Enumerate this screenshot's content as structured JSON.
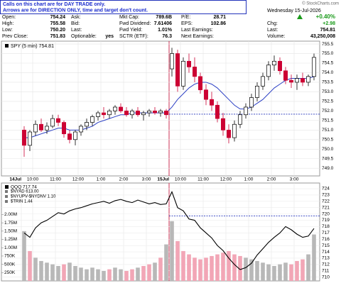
{
  "header": {
    "copyright": "© StockCharts.com",
    "note_lines": [
      "Calls on this chart are for DAY TRADE only.",
      "Arrows are for DIRECTION ONLY, time and target don't count."
    ],
    "quote": [
      [
        [
          "Open:",
          "754.24"
        ],
        [
          "High:",
          "755.58"
        ],
        [
          "Low:",
          "750.20"
        ],
        [
          "Prev Close:",
          "751.83"
        ]
      ],
      [
        [
          "Ask:"
        ],
        [
          "Bid:"
        ],
        [
          "Last:"
        ],
        [
          "Optionable:",
          "yes"
        ]
      ],
      [
        [
          "Mkt Cap:",
          "789.6B"
        ],
        [
          "Fwd Dividend:",
          "7.61406"
        ],
        [
          "Fwd Yield:",
          "1.01%"
        ],
        [
          "SCTR (ETF):",
          "76.3"
        ]
      ],
      [
        [
          "P/E:",
          "28.71"
        ],
        [
          "EPS:",
          "102.86"
        ],
        [
          "Last Earnings:"
        ],
        [
          "Next Earnings:"
        ]
      ]
    ],
    "date": "Wednesday 15-Jul-2026",
    "chg_pct": "+0.40%",
    "chg": [
      "Chg:",
      "+2.98"
    ],
    "last": [
      "Last:",
      "754.81"
    ],
    "volume": [
      "Volume:",
      "43,250,008"
    ]
  },
  "chart_data": [
    {
      "type": "candlestick",
      "categories": [
        "14Jul",
        null,
        "10:00",
        null,
        null,
        null,
        "11:00",
        null,
        null,
        null,
        "12:00",
        null,
        null,
        null,
        "1:00",
        null,
        null,
        null,
        "2:00",
        null,
        null,
        null,
        "3:00",
        null,
        null,
        null,
        "15Jul",
        null,
        "10:00",
        null,
        null,
        null,
        "11:00",
        null,
        null,
        null,
        "12:00",
        null,
        null,
        null,
        "1:00",
        null,
        null,
        null,
        "2:00",
        null,
        null,
        null,
        "3:00",
        null,
        null,
        null
      ],
      "series": [
        {
          "name": "SPY (5 min) 754.81",
          "up_color": "#000000",
          "down_color": "#cc0033",
          "open": [
            751.0,
            750.2,
            750.9,
            751.3,
            751.0,
            751.2,
            751.6,
            751.4,
            750.8,
            750.5,
            750.9,
            751.2,
            751.4,
            751.7,
            751.9,
            751.8,
            752.0,
            752.2,
            752.0,
            751.8,
            752.0,
            751.8,
            751.9,
            752.0,
            751.9,
            752.0,
            754.2,
            755.0,
            753.3,
            754.6,
            754.3,
            753.8,
            753.1,
            752.6,
            752.3,
            751.6,
            751.0,
            750.6,
            751.3,
            751.8,
            752.2,
            752.7,
            753.3,
            753.8,
            754.4,
            754.6,
            754.1,
            753.6,
            753.5,
            753.7,
            753.5,
            753.8
          ],
          "high": [
            751.2,
            751.0,
            751.5,
            751.6,
            751.4,
            751.8,
            751.8,
            751.5,
            751.0,
            751.0,
            751.3,
            751.6,
            751.8,
            752.0,
            752.2,
            752.1,
            752.3,
            752.4,
            752.2,
            752.1,
            752.2,
            752.0,
            752.1,
            752.2,
            752.1,
            752.1,
            755.3,
            755.2,
            754.8,
            755.0,
            754.8,
            754.0,
            753.4,
            753.0,
            752.5,
            751.9,
            751.3,
            751.5,
            752.0,
            752.4,
            752.9,
            753.5,
            754.0,
            754.6,
            754.9,
            754.8,
            754.3,
            753.9,
            753.9,
            754.0,
            753.9,
            755.0
          ],
          "low": [
            749.6,
            749.9,
            750.7,
            750.9,
            750.8,
            751.1,
            751.2,
            750.6,
            750.3,
            750.2,
            750.7,
            751.0,
            751.2,
            751.5,
            751.6,
            751.6,
            751.8,
            751.9,
            751.7,
            751.6,
            751.7,
            751.5,
            751.7,
            751.8,
            751.7,
            751.6,
            753.8,
            753.0,
            753.1,
            754.0,
            753.5,
            752.9,
            752.3,
            752.0,
            751.4,
            750.7,
            750.3,
            750.4,
            751.1,
            751.6,
            752.0,
            752.5,
            753.1,
            753.6,
            754.1,
            753.9,
            753.4,
            753.2,
            753.1,
            753.3,
            753.3,
            753.6
          ],
          "close": [
            750.2,
            750.9,
            751.3,
            751.0,
            751.2,
            751.6,
            751.4,
            750.8,
            750.5,
            750.9,
            751.2,
            751.4,
            751.7,
            751.9,
            751.8,
            752.0,
            752.2,
            752.0,
            751.8,
            752.0,
            751.8,
            751.9,
            752.0,
            751.9,
            752.0,
            751.8,
            755.0,
            753.3,
            754.6,
            754.3,
            753.8,
            753.1,
            752.6,
            752.3,
            751.6,
            751.0,
            750.6,
            751.3,
            751.8,
            752.2,
            752.7,
            753.3,
            753.8,
            754.4,
            754.6,
            754.1,
            753.6,
            753.5,
            753.7,
            753.5,
            753.8,
            754.8
          ]
        }
      ],
      "overlay": {
        "color": "#2b3fc4",
        "values": [
          750.6,
          750.6,
          750.7,
          750.8,
          750.9,
          751.0,
          751.1,
          751.1,
          751.0,
          751.0,
          751.0,
          751.1,
          751.2,
          751.4,
          751.5,
          751.6,
          751.7,
          751.8,
          751.8,
          751.9,
          751.9,
          751.9,
          751.9,
          751.9,
          751.9,
          751.9,
          752.2,
          752.6,
          752.9,
          753.2,
          753.4,
          753.5,
          753.5,
          753.4,
          753.2,
          752.9,
          752.6,
          752.3,
          752.1,
          752.1,
          752.2,
          752.4,
          752.6,
          752.9,
          753.2,
          753.4,
          753.6,
          753.7,
          753.7,
          753.7,
          753.7,
          753.8
        ]
      },
      "reference_color": "#2233bb",
      "ylim": [
        748.6,
        755.65
      ],
      "yticks": [
        {
          "value": 749,
          "label": "749.0"
        },
        749.5,
        {
          "value": 750,
          "label": "750.0"
        },
        750.5,
        {
          "value": 751,
          "label": "751.0"
        },
        751.5,
        {
          "value": 752,
          "label": "752.0"
        },
        752.5,
        {
          "value": 753,
          "label": "753.0"
        },
        753.5,
        {
          "value": 754,
          "label": "754.0"
        },
        754.5,
        {
          "value": 755,
          "label": "755.0"
        },
        755.5
      ],
      "grid": true
    },
    {
      "type": "line",
      "series": [
        {
          "name": "QQQ 717.74",
          "color": "#000000",
          "values": [
            717.0,
            716.3,
            717.8,
            718.6,
            719.0,
            719.6,
            720.2,
            720.0,
            720.5,
            720.8,
            721.0,
            721.3,
            721.6,
            721.8,
            722.0,
            721.7,
            722.1,
            722.3,
            722.0,
            721.8,
            722.2,
            721.9,
            721.6,
            721.8,
            721.5,
            721.6,
            723.5,
            721.0,
            720.5,
            719.2,
            719.0,
            717.8,
            717.0,
            716.2,
            715.0,
            714.2,
            713.0,
            712.0,
            711.2,
            711.5,
            712.2,
            713.5,
            714.5,
            715.5,
            716.3,
            717.0,
            718.0,
            717.5,
            716.8,
            716.3,
            716.5,
            717.7
          ]
        }
      ],
      "legend_extra": [
        "$NYAD 613.00",
        "$NYUPV-$NYDNV 1.10",
        "$TRIN 1.44"
      ],
      "reference": {
        "value": 719.7,
        "color": "#2233bb"
      },
      "ylim": [
        709.4,
        724.9
      ],
      "yticks": [
        710,
        711,
        712,
        713,
        714,
        715,
        716,
        717,
        718,
        719,
        720,
        721,
        722,
        723,
        724
      ],
      "volume": {
        "up_color": "#b8b8b8",
        "down_color": "#f2a6b6",
        "values": [
          1500000,
          900000,
          700000,
          600000,
          550000,
          500000,
          450000,
          500000,
          550000,
          450000,
          400000,
          350000,
          400000,
          350000,
          300000,
          350000,
          400000,
          350000,
          300000,
          350000,
          400000,
          450000,
          500000,
          550000,
          700000,
          1100000,
          1800000,
          1200000,
          900000,
          800000,
          700000,
          650000,
          700000,
          750000,
          800000,
          850000,
          900000,
          800000,
          750000,
          700000,
          650000,
          600000,
          550000,
          500000,
          450000,
          500000,
          550000,
          500000,
          600000,
          650000,
          800000,
          1400000
        ],
        "ylim": [
          0,
          2950000
        ],
        "yticks": [
          {
            "value": 250000,
            "label": "250K"
          },
          {
            "value": 500000,
            "label": "500K"
          },
          {
            "value": 750000,
            "label": "750K"
          },
          {
            "value": 1000000,
            "label": "1.00M"
          },
          {
            "value": 1250000,
            "label": "1.25M"
          },
          {
            "value": 1500000,
            "label": "1.50M"
          },
          {
            "value": 1750000,
            "label": "1.75M"
          },
          {
            "value": 2000000,
            "label": "2.00M"
          }
        ]
      },
      "grid": true
    }
  ]
}
